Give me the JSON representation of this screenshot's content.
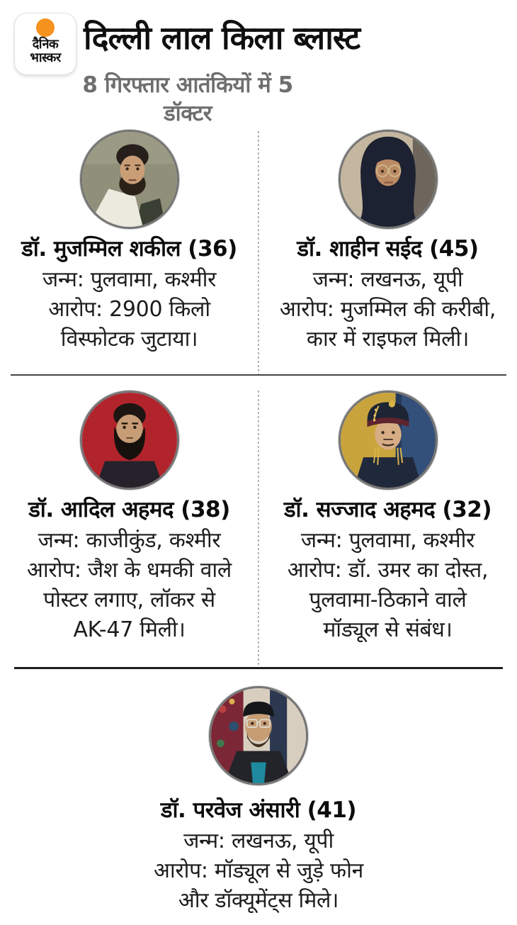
{
  "brand": {
    "logo_line1": "दैनिक",
    "logo_line2": "भास्कर",
    "logo_dot_color": "#F6921E"
  },
  "header": {
    "title": "दिल्ली लाल किला ब्लास्ट",
    "subtitle": "8 गिरफ्तार आतंकियों में 5 डॉक्टर"
  },
  "colors": {
    "title_text": "#0F0F0F",
    "subtitle_text": "#6E6E6E",
    "detail_text": "#1C1C1C",
    "horizontal_divider": "#1E1E1E",
    "dotted_divider": "#B3B3B3",
    "photo_ring": "#757575"
  },
  "people": [
    {
      "name": "डॉ. मुजम्मिल शकील (36)",
      "photo": "man-beard-white-coat",
      "detail_lines": [
        "जन्म: पुलवामा, कश्मीर",
        "आरोप: 2900 किलो",
        "विस्फोटक जुटाया।"
      ]
    },
    {
      "name": "डॉ. शाहीन सईद (45)",
      "photo": "woman-hijab-glasses",
      "detail_lines": [
        "जन्म: लखनऊ, यूपी",
        "आरोप: मुजम्मिल की करीबी,",
        "कार में राइफल मिली।"
      ]
    },
    {
      "name": "डॉ. आदिल अहमद (38)",
      "photo": "man-long-beard-red-bg",
      "detail_lines": [
        "जन्म: काजीकुंड, कश्मीर",
        "आरोप: जैश के धमकी वाले",
        "पोस्टर लगाए, लॉकर से",
        "AK-47 मिली।"
      ]
    },
    {
      "name": "डॉ. सज्जाद अहमद (32)",
      "photo": "man-turban-gold-jewelry",
      "detail_lines": [
        "जन्म: पुलवामा, कश्मीर",
        "आरोप: डॉ. उमर का दोस्त,",
        "पुलवामा-ठिकाने वाले",
        "मॉड्यूल से संबंध।"
      ]
    },
    {
      "name": "डॉ. परवेज अंसारी (41)",
      "photo": "man-cap-glasses-teal-shirt",
      "detail_lines": [
        "जन्म: लखनऊ, यूपी",
        "आरोप: मॉड्यूल से जुड़े फोन",
        "और डॉक्यूमेंट्स मिले।"
      ]
    }
  ]
}
